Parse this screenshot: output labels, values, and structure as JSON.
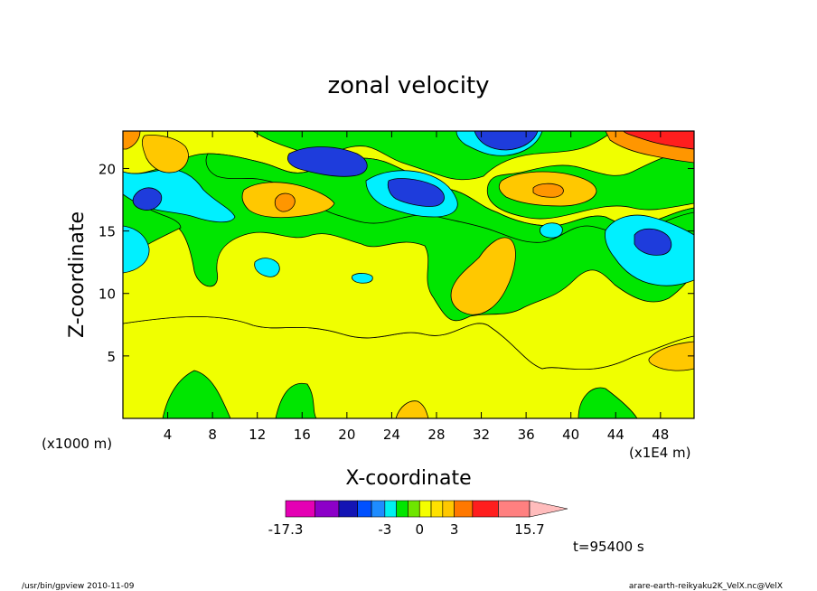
{
  "chart_data": {
    "type": "heatmap",
    "title": "zonal velocity",
    "xlabel": "X-coordinate",
    "ylabel": "Z-coordinate",
    "x_unit_left": "(x1000 m)",
    "x_unit_right": "(x1E4 m)",
    "xlim": [
      0,
      51
    ],
    "ylim": [
      0,
      23
    ],
    "x_ticks": [
      4,
      8,
      12,
      16,
      20,
      24,
      28,
      32,
      36,
      40,
      44,
      48
    ],
    "y_ticks": [
      5,
      10,
      15,
      20
    ],
    "time_label": "t=95400 s",
    "colorbar": {
      "labels": [
        {
          "value": -17.3,
          "text": "-17.3"
        },
        {
          "value": -3,
          "text": "-3"
        },
        {
          "value": 0,
          "text": "0"
        },
        {
          "value": 3,
          "text": "3"
        },
        {
          "value": 15.7,
          "text": "15.7"
        }
      ],
      "segments": [
        {
          "lo": -17.3,
          "hi": -11.8,
          "color": "#e400b4"
        },
        {
          "lo": -11.8,
          "hi": -8.1,
          "color": "#8c00c8"
        },
        {
          "lo": -8.1,
          "hi": -5.7,
          "color": "#1414b4"
        },
        {
          "lo": -5.7,
          "hi": -4.3,
          "color": "#0050ff"
        },
        {
          "lo": -4.3,
          "hi": -3.0,
          "color": "#1e8cff"
        },
        {
          "lo": -3.0,
          "hi": -2.0,
          "color": "#00f0f0"
        },
        {
          "lo": -2.0,
          "hi": -1.0,
          "color": "#00e600"
        },
        {
          "lo": -1.0,
          "hi": 0.0,
          "color": "#6ee600"
        },
        {
          "lo": 0.0,
          "hi": 1.0,
          "color": "#f5ff00"
        },
        {
          "lo": 1.0,
          "hi": 2.0,
          "color": "#ffe100"
        },
        {
          "lo": 2.0,
          "hi": 3.0,
          "color": "#ffc800"
        },
        {
          "lo": 3.0,
          "hi": 5.3,
          "color": "#ff7800"
        },
        {
          "lo": 5.3,
          "hi": 9.6,
          "color": "#ff1e1e"
        },
        {
          "lo": 9.6,
          "hi": 15.7,
          "color": "#ff8080"
        }
      ],
      "extend_color": "#ffbcbc"
    },
    "field_colors": {
      "blue": "#1e3cdc",
      "cyan": "#00f0ff",
      "green": "#00e600",
      "yellow": "#f0ff00",
      "amber": "#ffc800",
      "orange": "#ff9600"
    }
  },
  "footer": {
    "left": "/usr/bin/gpview   2010-11-09",
    "right": "arare-earth-reikyaku2K_VelX.nc@VelX"
  }
}
